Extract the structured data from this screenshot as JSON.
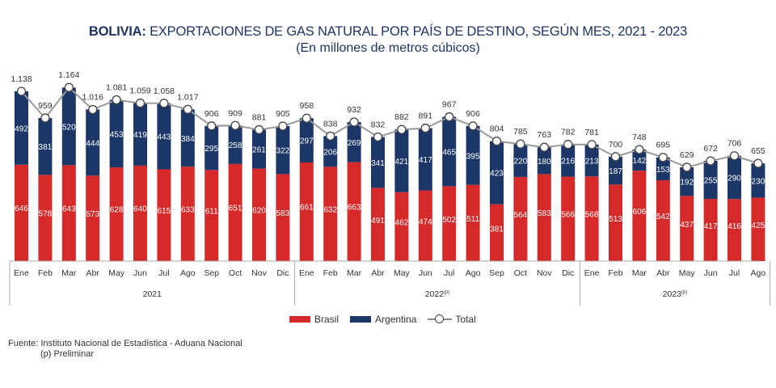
{
  "header": {
    "title_bold": "BOLIVIA:",
    "title_rest": " EXPORTACIONES DE GAS NATURAL POR PAÍS DE DESTINO, SEGÚN MES, 2021 - 2023",
    "subtitle": "(En millones de metros cúbicos)"
  },
  "legend": {
    "brasil": "Brasil",
    "argentina": "Argentina",
    "total": "Total"
  },
  "colors": {
    "brasil": "#d62a2a",
    "argentina": "#1c3767",
    "total_line": "#9a9a9a"
  },
  "footer": {
    "source": "Fuente: Instituto Nacional de Estadística - Aduana Nacional",
    "note": "(p) Preliminar"
  },
  "chart_data": {
    "type": "bar",
    "stacked": true,
    "title": "BOLIVIA: EXPORTACIONES DE GAS NATURAL POR PAÍS DE DESTINO, SEGÚN MES, 2021 - 2023",
    "subtitle": "(En millones de metros cúbicos)",
    "xlabel": "",
    "ylabel": "",
    "grid": false,
    "legend_position": "bottom-center",
    "groups": [
      {
        "label": "2021",
        "superscript": "",
        "count": 12
      },
      {
        "label": "2022",
        "superscript": "(p)",
        "count": 12
      },
      {
        "label": "2023",
        "superscript": "(p)",
        "count": 8
      }
    ],
    "categories": [
      "Ene",
      "Feb",
      "Mar",
      "Abr",
      "May",
      "Jun",
      "Jul",
      "Ago",
      "Sep",
      "Oct",
      "Nov",
      "Dic",
      "Ene",
      "Feb",
      "Mar",
      "Abr",
      "May",
      "Jun",
      "Jul",
      "Ago",
      "Sep",
      "Oct",
      "Nov",
      "Dic",
      "Ene",
      "Feb",
      "Mar",
      "Abr",
      "May",
      "Jun",
      "Jul",
      "Ago"
    ],
    "series": [
      {
        "name": "Brasil",
        "type": "bar",
        "values": [
          646,
          578,
          643,
          573,
          628,
          640,
          615,
          633,
          611,
          651,
          620,
          583,
          661,
          632,
          663,
          491,
          462,
          474,
          502,
          511,
          381,
          564,
          583,
          566,
          568,
          513,
          606,
          542,
          437,
          417,
          416,
          425
        ]
      },
      {
        "name": "Argentina",
        "type": "bar",
        "values": [
          492,
          381,
          520,
          444,
          453,
          419,
          443,
          384,
          295,
          258,
          261,
          322,
          297,
          206,
          269,
          341,
          421,
          417,
          465,
          395,
          423,
          220,
          180,
          216,
          213,
          187,
          142,
          153,
          192,
          255,
          290,
          230
        ]
      },
      {
        "name": "Total",
        "type": "line",
        "values": [
          1138,
          959,
          1164,
          1016,
          1081,
          1059,
          1058,
          1017,
          906,
          909,
          881,
          905,
          958,
          838,
          932,
          832,
          882,
          891,
          967,
          906,
          804,
          785,
          763,
          782,
          781,
          700,
          748,
          695,
          629,
          672,
          706,
          655
        ],
        "labels": [
          "1.138",
          "959",
          "1.164",
          "1.016",
          "1.081",
          "1.059",
          "1.058",
          "1.017",
          "906",
          "909",
          "881",
          "905",
          "958",
          "838",
          "932",
          "832",
          "882",
          "891",
          "967",
          "906",
          "804",
          "785",
          "763",
          "782",
          "781",
          "700",
          "748",
          "695",
          "629",
          "672",
          "706",
          "655"
        ]
      }
    ],
    "ylim": [
      0,
      1200
    ]
  }
}
